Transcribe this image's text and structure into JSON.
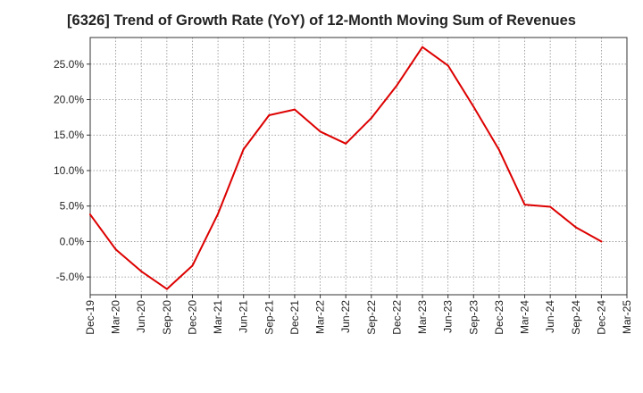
{
  "chart_data": {
    "type": "line",
    "title": "[6326]  Trend of Growth Rate (YoY) of 12-Month Moving Sum of Revenues",
    "xlabel": "",
    "ylabel": "",
    "y_unit": "%",
    "ylim": [
      -7.5,
      28.75
    ],
    "yticks": [
      -5.0,
      0.0,
      5.0,
      10.0,
      15.0,
      20.0,
      25.0
    ],
    "ytick_labels": [
      "-5.0%",
      "0.0%",
      "5.0%",
      "10.0%",
      "15.0%",
      "20.0%",
      "25.0%"
    ],
    "categories": [
      "Dec-19",
      "Mar-20",
      "Jun-20",
      "Sep-20",
      "Dec-20",
      "Mar-21",
      "Jun-21",
      "Sep-21",
      "Dec-21",
      "Mar-22",
      "Jun-22",
      "Sep-22",
      "Dec-22",
      "Mar-23",
      "Jun-23",
      "Sep-23",
      "Dec-23",
      "Mar-24",
      "Jun-24",
      "Sep-24",
      "Dec-24",
      "Mar-25"
    ],
    "grid": true,
    "line_color": "#dd0000",
    "series": [
      {
        "values": [
          3.8,
          -1.1,
          -4.2,
          -6.7,
          -3.4,
          3.9,
          13.0,
          17.8,
          18.6,
          15.5,
          13.8,
          17.4,
          22.0,
          27.4,
          24.8,
          19.0,
          12.9,
          5.2,
          4.9,
          2.0,
          0.0,
          null
        ]
      }
    ]
  }
}
